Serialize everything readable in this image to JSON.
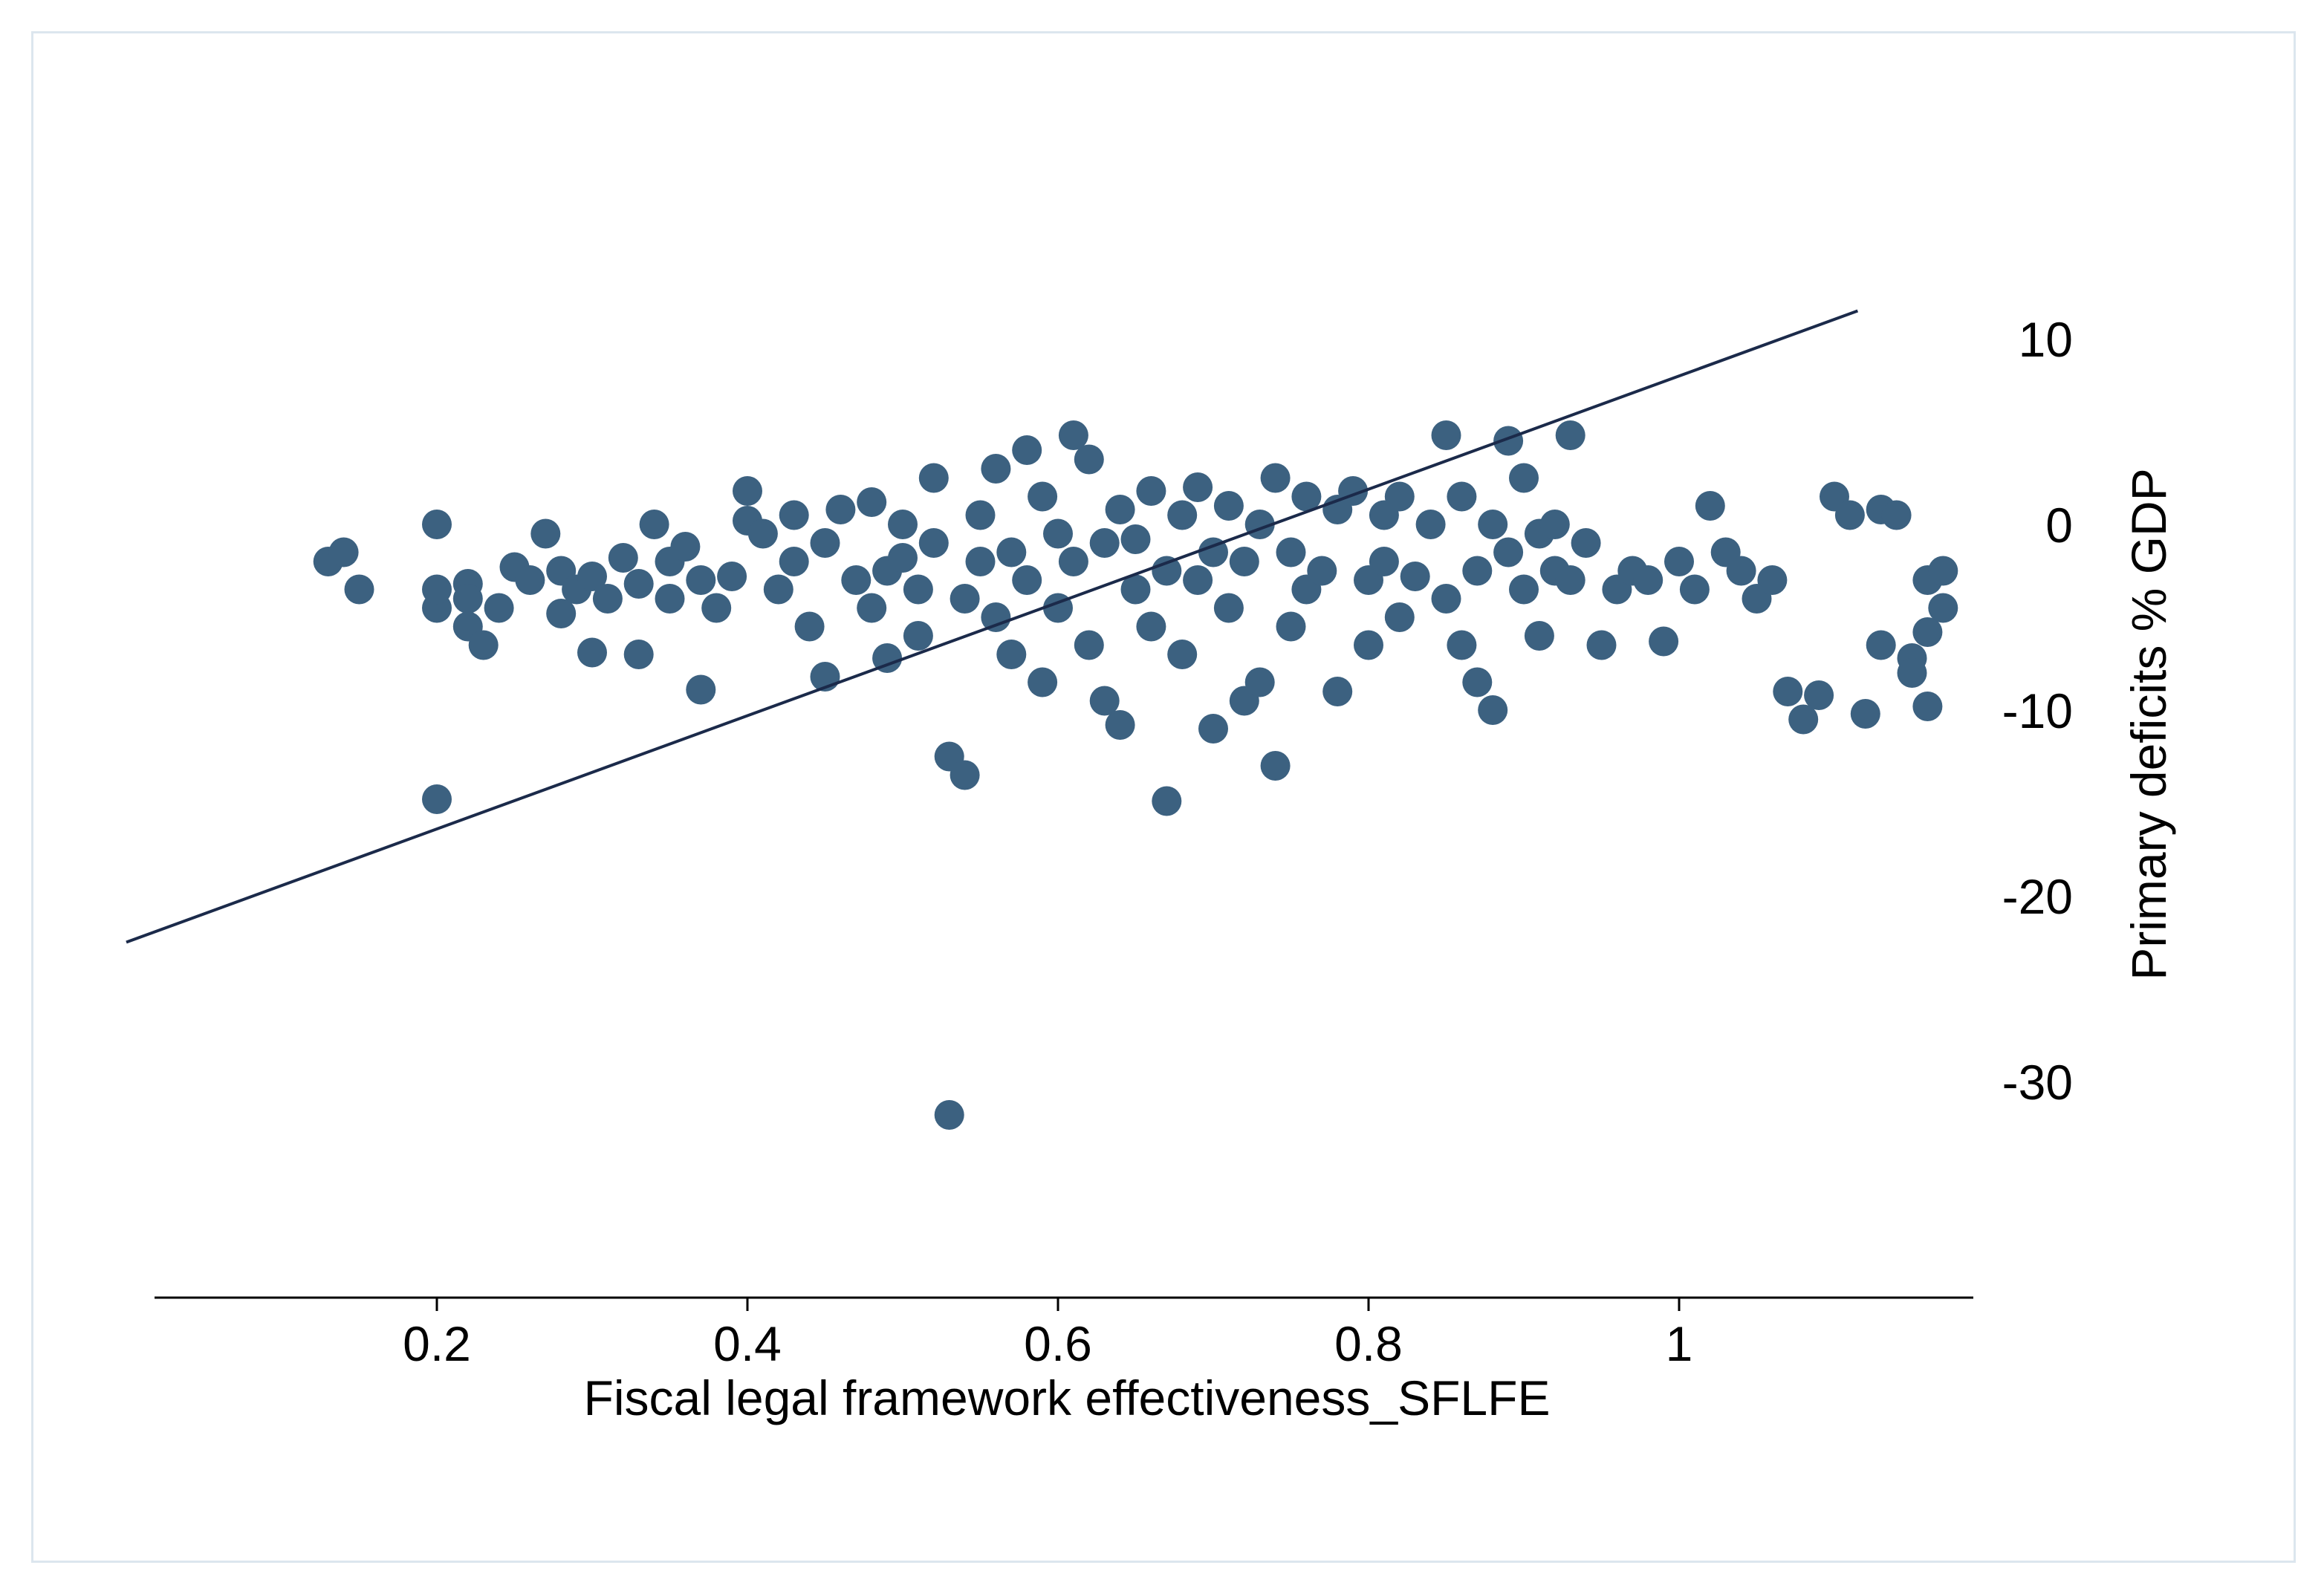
{
  "chart_data": {
    "type": "scatter",
    "xlabel": "Fiscal legal framework effectiveness_SFLFE",
    "ylabel": "Primary deficits   % GDP",
    "xlim": [
      0.0,
      1.17
    ],
    "ylim": [
      -42,
      15
    ],
    "xticks": [
      0.2,
      0.4,
      0.6,
      0.8,
      1
    ],
    "xtick_labels": [
      "0.2",
      "0.4",
      "0.6",
      "0.8",
      "1"
    ],
    "yticks": [
      10,
      0,
      -10,
      -20,
      -30
    ],
    "ytick_labels": [
      "10",
      "0",
      "-10",
      "-20",
      "-30"
    ],
    "y_axis_side": "right",
    "grid": false,
    "legend": "none",
    "point_color": "#3c6180",
    "line_color": "#1b2a4a",
    "fit_line": {
      "x": [
        0.0,
        1.115
      ],
      "y": [
        -22.5,
        11.5
      ]
    },
    "points": [
      [
        0.13,
        -2.0
      ],
      [
        0.14,
        -1.5
      ],
      [
        0.15,
        -3.5
      ],
      [
        0.2,
        0.0
      ],
      [
        0.2,
        -4.5
      ],
      [
        0.2,
        -3.5
      ],
      [
        0.2,
        -14.8
      ],
      [
        0.22,
        -3.2
      ],
      [
        0.22,
        -4.0
      ],
      [
        0.22,
        -5.5
      ],
      [
        0.23,
        -6.5
      ],
      [
        0.24,
        -4.5
      ],
      [
        0.25,
        -2.3
      ],
      [
        0.26,
        -3.0
      ],
      [
        0.27,
        -0.5
      ],
      [
        0.28,
        -2.5
      ],
      [
        0.28,
        -4.8
      ],
      [
        0.29,
        -3.5
      ],
      [
        0.3,
        -6.9
      ],
      [
        0.3,
        -2.8
      ],
      [
        0.31,
        -4.0
      ],
      [
        0.32,
        -1.8
      ],
      [
        0.33,
        -3.2
      ],
      [
        0.33,
        -7.0
      ],
      [
        0.34,
        0.0
      ],
      [
        0.35,
        -2.0
      ],
      [
        0.35,
        -4.0
      ],
      [
        0.36,
        -1.2
      ],
      [
        0.37,
        -3.0
      ],
      [
        0.37,
        -8.9
      ],
      [
        0.38,
        -4.5
      ],
      [
        0.39,
        -2.8
      ],
      [
        0.4,
        1.8
      ],
      [
        0.4,
        0.2
      ],
      [
        0.41,
        -0.5
      ],
      [
        0.42,
        -3.5
      ],
      [
        0.43,
        -2.0
      ],
      [
        0.43,
        0.5
      ],
      [
        0.44,
        -5.5
      ],
      [
        0.45,
        -8.2
      ],
      [
        0.45,
        -1.0
      ],
      [
        0.46,
        0.8
      ],
      [
        0.47,
        -3.0
      ],
      [
        0.48,
        -4.5
      ],
      [
        0.48,
        1.2
      ],
      [
        0.49,
        -7.2
      ],
      [
        0.49,
        -2.5
      ],
      [
        0.5,
        0.0
      ],
      [
        0.5,
        -1.8
      ],
      [
        0.51,
        -3.5
      ],
      [
        0.51,
        -6.0
      ],
      [
        0.52,
        -1.0
      ],
      [
        0.52,
        2.5
      ],
      [
        0.53,
        -12.5
      ],
      [
        0.53,
        -31.8
      ],
      [
        0.54,
        -13.5
      ],
      [
        0.54,
        -4.0
      ],
      [
        0.55,
        -2.0
      ],
      [
        0.55,
        0.5
      ],
      [
        0.56,
        -5.0
      ],
      [
        0.56,
        3.0
      ],
      [
        0.57,
        -1.5
      ],
      [
        0.57,
        -7.0
      ],
      [
        0.58,
        4.0
      ],
      [
        0.58,
        -3.0
      ],
      [
        0.59,
        -8.5
      ],
      [
        0.59,
        1.5
      ],
      [
        0.6,
        -0.5
      ],
      [
        0.6,
        -4.5
      ],
      [
        0.61,
        4.8
      ],
      [
        0.61,
        -2.0
      ],
      [
        0.62,
        -6.5
      ],
      [
        0.62,
        3.5
      ],
      [
        0.63,
        -9.5
      ],
      [
        0.63,
        -1.0
      ],
      [
        0.64,
        0.8
      ],
      [
        0.64,
        -10.8
      ],
      [
        0.65,
        -3.5
      ],
      [
        0.65,
        -0.8
      ],
      [
        0.66,
        -5.5
      ],
      [
        0.66,
        1.8
      ],
      [
        0.67,
        -14.9
      ],
      [
        0.67,
        -2.5
      ],
      [
        0.68,
        0.5
      ],
      [
        0.68,
        -7.0
      ],
      [
        0.69,
        -3.0
      ],
      [
        0.69,
        2.0
      ],
      [
        0.7,
        -1.5
      ],
      [
        0.7,
        -11.0
      ],
      [
        0.71,
        -4.5
      ],
      [
        0.71,
        1.0
      ],
      [
        0.72,
        -9.5
      ],
      [
        0.72,
        -2.0
      ],
      [
        0.73,
        0.0
      ],
      [
        0.73,
        -8.5
      ],
      [
        0.74,
        2.5
      ],
      [
        0.74,
        -13.0
      ],
      [
        0.75,
        -5.5
      ],
      [
        0.75,
        -1.5
      ],
      [
        0.76,
        1.5
      ],
      [
        0.76,
        -3.5
      ],
      [
        0.77,
        -2.5
      ],
      [
        0.78,
        0.8
      ],
      [
        0.78,
        -9.0
      ],
      [
        0.79,
        1.8
      ],
      [
        0.8,
        -6.5
      ],
      [
        0.8,
        -3.0
      ],
      [
        0.81,
        0.5
      ],
      [
        0.81,
        -2.0
      ],
      [
        0.82,
        1.5
      ],
      [
        0.82,
        -5.0
      ],
      [
        0.83,
        -2.8
      ],
      [
        0.84,
        0.0
      ],
      [
        0.85,
        4.8
      ],
      [
        0.85,
        -4.0
      ],
      [
        0.86,
        -6.5
      ],
      [
        0.86,
        1.5
      ],
      [
        0.87,
        -8.5
      ],
      [
        0.87,
        -2.5
      ],
      [
        0.88,
        0.0
      ],
      [
        0.88,
        -10.0
      ],
      [
        0.89,
        4.5
      ],
      [
        0.89,
        -1.5
      ],
      [
        0.9,
        2.5
      ],
      [
        0.9,
        -3.5
      ],
      [
        0.91,
        -0.5
      ],
      [
        0.91,
        -6.0
      ],
      [
        0.92,
        -2.5
      ],
      [
        0.92,
        0.0
      ],
      [
        0.93,
        -3.0
      ],
      [
        0.93,
        4.8
      ],
      [
        0.94,
        -1.0
      ],
      [
        0.95,
        -6.5
      ],
      [
        0.96,
        -3.5
      ],
      [
        0.97,
        -2.5
      ],
      [
        0.98,
        -3.0
      ],
      [
        0.99,
        -6.3
      ],
      [
        1.0,
        -2.0
      ],
      [
        1.01,
        -3.5
      ],
      [
        1.02,
        1.0
      ],
      [
        1.03,
        -1.5
      ],
      [
        1.04,
        -2.5
      ],
      [
        1.05,
        -4.0
      ],
      [
        1.06,
        -3.0
      ],
      [
        1.07,
        -9.0
      ],
      [
        1.08,
        -10.5
      ],
      [
        1.09,
        -9.2
      ],
      [
        1.1,
        1.5
      ],
      [
        1.11,
        0.5
      ],
      [
        1.12,
        -10.2
      ],
      [
        1.13,
        -6.5
      ],
      [
        1.13,
        0.8
      ],
      [
        1.14,
        0.5
      ],
      [
        1.15,
        -7.2
      ],
      [
        1.15,
        -8.0
      ],
      [
        1.16,
        -9.8
      ],
      [
        1.16,
        -3.0
      ],
      [
        1.16,
        -5.8
      ],
      [
        1.17,
        -2.5
      ],
      [
        1.17,
        -4.5
      ]
    ]
  }
}
